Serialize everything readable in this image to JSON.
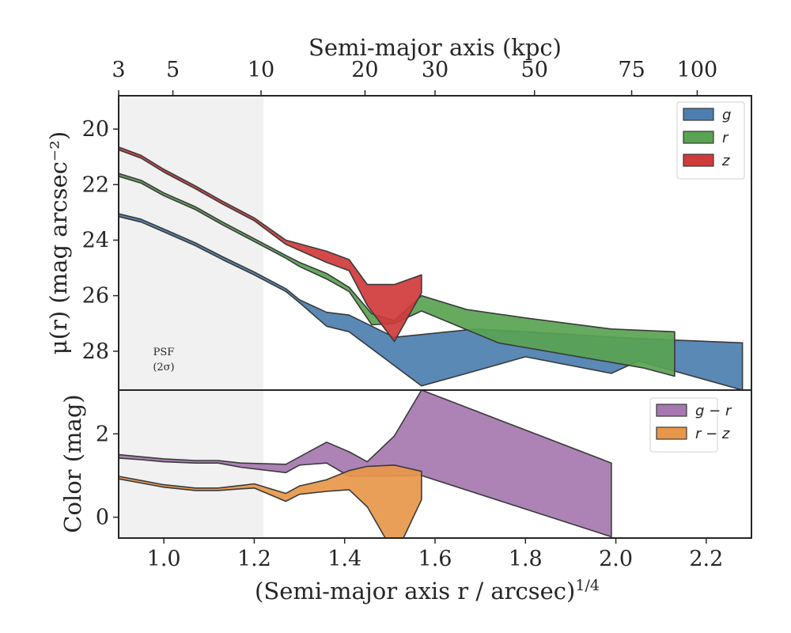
{
  "chart_data": [
    {
      "type": "area",
      "panel": "surface-brightness",
      "xlabel": "(Semi-major axis r / arcsec)",
      "xlabel_superscript": "1/4",
      "ylabel": "μ(r) (mag arcsec⁻²)",
      "top_xlabel": "Semi-major axis (kpc)",
      "xlim": [
        0.9,
        2.3
      ],
      "ylim": [
        29.4,
        18.8
      ],
      "y_inverted": true,
      "yticks": [
        20,
        22,
        24,
        26,
        28
      ],
      "xticks": [
        1.0,
        1.2,
        1.4,
        1.6,
        1.8,
        2.0,
        2.2
      ],
      "top_ticks": [
        {
          "label": "3",
          "x": 0.9
        },
        {
          "label": "5",
          "x": 1.02
        },
        {
          "label": "10",
          "x": 1.215
        },
        {
          "label": "20",
          "x": 1.445
        },
        {
          "label": "30",
          "x": 1.6
        },
        {
          "label": "50",
          "x": 1.82
        },
        {
          "label": "75",
          "x": 2.035
        },
        {
          "label": "100",
          "x": 2.18
        }
      ],
      "psf_region": {
        "x": [
          0.9,
          1.22
        ],
        "label_line1": "PSF",
        "label_line2": "(2σ)"
      },
      "legend_position": "top-right",
      "series": [
        {
          "name": "g",
          "color": "#4c7fb0",
          "upper": [
            [
              0.9,
              23.05
            ],
            [
              0.95,
              23.25
            ],
            [
              1.0,
              23.6
            ],
            [
              1.07,
              24.1
            ],
            [
              1.13,
              24.6
            ],
            [
              1.2,
              25.15
            ],
            [
              1.27,
              25.75
            ],
            [
              1.3,
              26.15
            ],
            [
              1.36,
              26.6
            ],
            [
              1.41,
              26.7
            ],
            [
              1.51,
              27.5
            ],
            [
              1.69,
              27.2
            ],
            [
              1.8,
              27.3
            ],
            [
              2.0,
              27.5
            ],
            [
              2.13,
              27.6
            ],
            [
              2.28,
              27.7
            ]
          ],
          "lower": [
            [
              0.9,
              23.15
            ],
            [
              0.95,
              23.35
            ],
            [
              1.0,
              23.7
            ],
            [
              1.07,
              24.2
            ],
            [
              1.13,
              24.7
            ],
            [
              1.2,
              25.25
            ],
            [
              1.27,
              25.85
            ],
            [
              1.3,
              26.25
            ],
            [
              1.36,
              27.1
            ],
            [
              1.41,
              27.3
            ],
            [
              1.57,
              29.25
            ],
            [
              1.67,
              28.8
            ],
            [
              1.8,
              28.2
            ],
            [
              1.99,
              28.8
            ],
            [
              2.05,
              28.35
            ],
            [
              2.28,
              29.4
            ]
          ]
        },
        {
          "name": "r",
          "color": "#59a352",
          "upper": [
            [
              0.9,
              21.6
            ],
            [
              0.95,
              21.85
            ],
            [
              1.0,
              22.3
            ],
            [
              1.07,
              22.8
            ],
            [
              1.13,
              23.35
            ],
            [
              1.2,
              23.95
            ],
            [
              1.27,
              24.55
            ],
            [
              1.3,
              24.8
            ],
            [
              1.36,
              25.2
            ],
            [
              1.41,
              25.7
            ],
            [
              1.46,
              26.65
            ],
            [
              1.51,
              26.9
            ],
            [
              1.57,
              26.0
            ],
            [
              1.67,
              26.5
            ],
            [
              1.8,
              26.8
            ],
            [
              1.99,
              27.2
            ],
            [
              2.13,
              27.3
            ]
          ],
          "lower": [
            [
              0.9,
              21.7
            ],
            [
              0.95,
              21.95
            ],
            [
              1.0,
              22.4
            ],
            [
              1.07,
              22.9
            ],
            [
              1.13,
              23.45
            ],
            [
              1.2,
              24.05
            ],
            [
              1.27,
              24.65
            ],
            [
              1.3,
              24.95
            ],
            [
              1.36,
              25.4
            ],
            [
              1.41,
              25.85
            ],
            [
              1.46,
              27.05
            ],
            [
              1.51,
              27.0
            ],
            [
              1.57,
              26.55
            ],
            [
              1.74,
              27.7
            ],
            [
              2.06,
              28.6
            ],
            [
              2.13,
              28.9
            ]
          ]
        },
        {
          "name": "z",
          "color": "#d03b3b",
          "upper": [
            [
              0.9,
              20.65
            ],
            [
              0.95,
              20.95
            ],
            [
              1.0,
              21.45
            ],
            [
              1.07,
              22.05
            ],
            [
              1.13,
              22.6
            ],
            [
              1.2,
              23.2
            ],
            [
              1.27,
              24.0
            ],
            [
              1.36,
              24.4
            ],
            [
              1.41,
              24.7
            ],
            [
              1.45,
              25.6
            ],
            [
              1.51,
              25.6
            ],
            [
              1.57,
              25.25
            ]
          ],
          "lower": [
            [
              0.9,
              20.75
            ],
            [
              0.95,
              21.05
            ],
            [
              1.0,
              21.55
            ],
            [
              1.07,
              22.15
            ],
            [
              1.13,
              22.7
            ],
            [
              1.2,
              23.3
            ],
            [
              1.27,
              24.15
            ],
            [
              1.36,
              24.8
            ],
            [
              1.41,
              25.1
            ],
            [
              1.45,
              26.35
            ],
            [
              1.51,
              27.65
            ],
            [
              1.57,
              25.9
            ]
          ]
        }
      ]
    },
    {
      "type": "area",
      "panel": "color",
      "ylabel": "Color (mag)",
      "xlabel": "(Semi-major axis r / arcsec)",
      "xlabel_superscript": "1/4",
      "xlim": [
        0.9,
        2.3
      ],
      "ylim": [
        -0.5,
        3.05
      ],
      "yticks": [
        0,
        2
      ],
      "xticks": [
        1.0,
        1.2,
        1.4,
        1.6,
        1.8,
        2.0,
        2.2
      ],
      "xtick_labels": [
        "1.0",
        "1.2",
        "1.4",
        "1.6",
        "1.8",
        "2.0",
        "2.2"
      ],
      "legend_position": "top-right",
      "series": [
        {
          "name": "g − r",
          "color": "#a678b0",
          "upper": [
            [
              0.9,
              1.5
            ],
            [
              0.95,
              1.45
            ],
            [
              1.0,
              1.4
            ],
            [
              1.07,
              1.36
            ],
            [
              1.12,
              1.36
            ],
            [
              1.17,
              1.3
            ],
            [
              1.27,
              1.27
            ],
            [
              1.36,
              1.8
            ],
            [
              1.41,
              1.57
            ],
            [
              1.45,
              1.33
            ],
            [
              1.51,
              1.95
            ],
            [
              1.57,
              3.05
            ],
            [
              1.99,
              1.3
            ]
          ],
          "lower": [
            [
              0.9,
              1.42
            ],
            [
              0.95,
              1.38
            ],
            [
              1.0,
              1.33
            ],
            [
              1.07,
              1.3
            ],
            [
              1.12,
              1.3
            ],
            [
              1.17,
              1.2
            ],
            [
              1.27,
              1.07
            ],
            [
              1.3,
              1.25
            ],
            [
              1.36,
              1.3
            ],
            [
              1.41,
              0.98
            ],
            [
              1.57,
              1.0
            ],
            [
              1.99,
              -0.47
            ]
          ]
        },
        {
          "name": "r − z",
          "color": "#e8974a",
          "upper": [
            [
              0.9,
              0.98
            ],
            [
              0.95,
              0.88
            ],
            [
              1.0,
              0.78
            ],
            [
              1.07,
              0.7
            ],
            [
              1.12,
              0.7
            ],
            [
              1.17,
              0.76
            ],
            [
              1.2,
              0.8
            ],
            [
              1.27,
              0.57
            ],
            [
              1.3,
              0.75
            ],
            [
              1.36,
              0.9
            ],
            [
              1.41,
              1.12
            ],
            [
              1.45,
              1.22
            ],
            [
              1.51,
              1.25
            ],
            [
              1.57,
              1.1
            ]
          ],
          "lower": [
            [
              0.9,
              0.92
            ],
            [
              0.95,
              0.82
            ],
            [
              1.0,
              0.72
            ],
            [
              1.07,
              0.64
            ],
            [
              1.12,
              0.64
            ],
            [
              1.17,
              0.68
            ],
            [
              1.2,
              0.7
            ],
            [
              1.27,
              0.38
            ],
            [
              1.3,
              0.55
            ],
            [
              1.36,
              0.62
            ],
            [
              1.41,
              0.66
            ],
            [
              1.45,
              0.25
            ],
            [
              1.49,
              -0.5
            ],
            [
              1.53,
              -0.5
            ],
            [
              1.57,
              0.42
            ]
          ]
        }
      ]
    }
  ]
}
